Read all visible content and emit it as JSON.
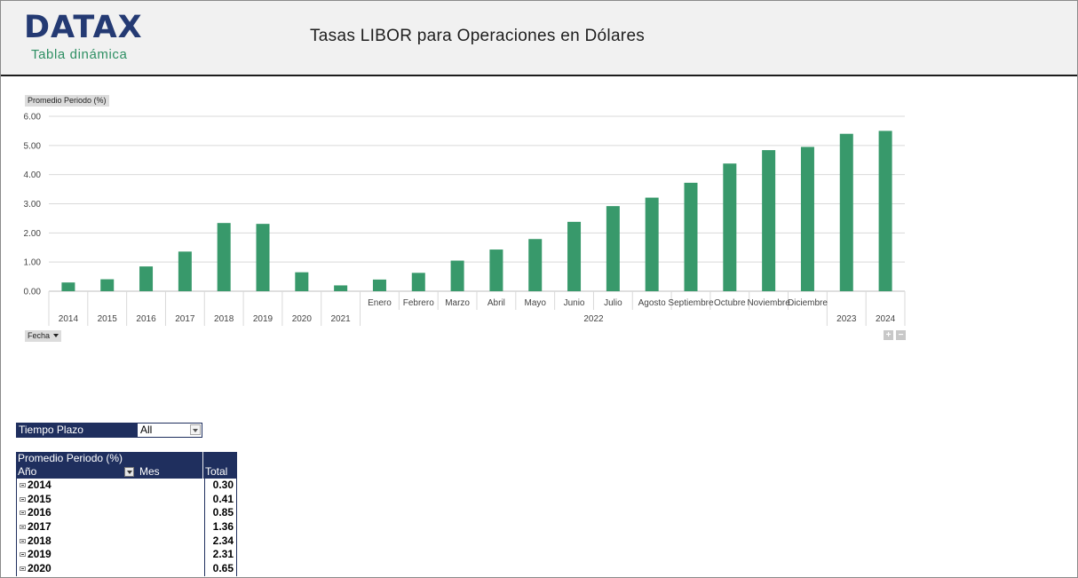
{
  "header": {
    "logo_text": "DATAX",
    "logo_subtitle": "Tabla dinámica",
    "title": "Tasas LIBOR para Operaciones en Dólares",
    "brand_color": "#243a73",
    "accent_color": "#2e8f63"
  },
  "chart_controls": {
    "value_field": "Promedio Periodo (%)",
    "axis_field": "Fecha",
    "expand_label": "+",
    "collapse_label": "−"
  },
  "chart_data": {
    "type": "bar",
    "title": "",
    "xlabel": "",
    "ylabel": "",
    "ylim": [
      0,
      6
    ],
    "yticks": [
      "0.00",
      "1.00",
      "2.00",
      "3.00",
      "4.00",
      "5.00",
      "6.00"
    ],
    "grid": true,
    "legend": "none",
    "bar_color": "#38996b",
    "categories": [
      {
        "label": "2014",
        "group": "",
        "value": 0.3
      },
      {
        "label": "2015",
        "group": "",
        "value": 0.41
      },
      {
        "label": "2016",
        "group": "",
        "value": 0.85
      },
      {
        "label": "2017",
        "group": "",
        "value": 1.36
      },
      {
        "label": "2018",
        "group": "",
        "value": 2.34
      },
      {
        "label": "2019",
        "group": "",
        "value": 2.31
      },
      {
        "label": "2020",
        "group": "",
        "value": 0.65
      },
      {
        "label": "2021",
        "group": "",
        "value": 0.2
      },
      {
        "label": "Enero",
        "group": "2022",
        "value": 0.4
      },
      {
        "label": "Febrero",
        "group": "2022",
        "value": 0.63
      },
      {
        "label": "Marzo",
        "group": "2022",
        "value": 1.05
      },
      {
        "label": "Abril",
        "group": "2022",
        "value": 1.43
      },
      {
        "label": "Mayo",
        "group": "2022",
        "value": 1.79
      },
      {
        "label": "Junio",
        "group": "2022",
        "value": 2.38
      },
      {
        "label": "Julio",
        "group": "2022",
        "value": 2.92
      },
      {
        "label": "Agosto",
        "group": "2022",
        "value": 3.21
      },
      {
        "label": "Septiembre",
        "group": "2022",
        "value": 3.72
      },
      {
        "label": "Octubre",
        "group": "2022",
        "value": 4.38
      },
      {
        "label": "Noviembre",
        "group": "2022",
        "value": 4.84
      },
      {
        "label": "Diciembre",
        "group": "2022",
        "value": 4.95
      },
      {
        "label": "2023",
        "group": "",
        "value": 5.4
      },
      {
        "label": "2024",
        "group": "",
        "value": 5.5
      }
    ],
    "group_label": "2022"
  },
  "filter": {
    "label": "Tiempo Plazo",
    "value": "All"
  },
  "pivot": {
    "header_value_field": "Promedio Periodo (%)",
    "row_field": "Año",
    "column_field": "Mes",
    "total_label": "Total",
    "rows": [
      {
        "year": "2014",
        "total": "0.30"
      },
      {
        "year": "2015",
        "total": "0.41"
      },
      {
        "year": "2016",
        "total": "0.85"
      },
      {
        "year": "2017",
        "total": "1.36"
      },
      {
        "year": "2018",
        "total": "2.34"
      },
      {
        "year": "2019",
        "total": "2.31"
      },
      {
        "year": "2020",
        "total": "0.65"
      }
    ]
  }
}
